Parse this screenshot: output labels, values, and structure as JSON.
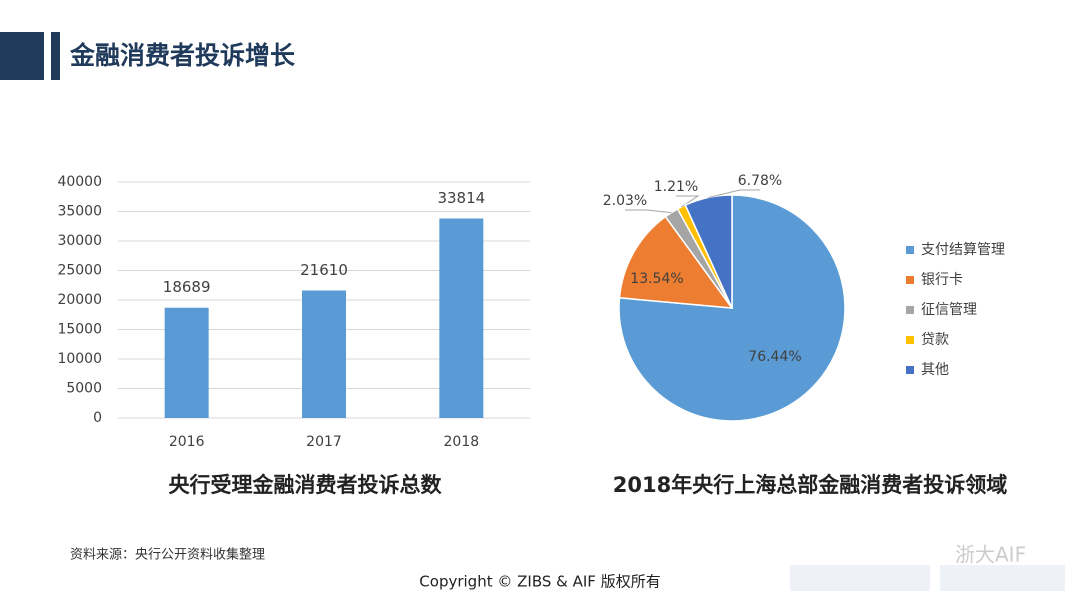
{
  "header": {
    "title": "金融消费者投诉增长"
  },
  "chart_data": [
    {
      "type": "bar",
      "title": "央行受理金融消费者投诉总数",
      "categories": [
        "2016",
        "2017",
        "2018"
      ],
      "values": [
        18689,
        21610,
        33814
      ],
      "color": "#5b9bd5",
      "ylim": [
        0,
        40000
      ],
      "yticks": [
        0,
        5000,
        10000,
        15000,
        20000,
        25000,
        30000,
        35000,
        40000
      ],
      "grid": true
    },
    {
      "type": "pie",
      "title": "2018年央行上海总部金融消费者投诉领域",
      "categories": [
        "支付结算管理",
        "银行卡",
        "征信管理",
        "贷款",
        "其他"
      ],
      "values": [
        76.44,
        13.54,
        2.03,
        1.21,
        6.78
      ],
      "value_labels": [
        "76.44%",
        "13.54%",
        "2.03%",
        "1.21%",
        "6.78%"
      ],
      "colors": [
        "#5b9bd5",
        "#ed7d31",
        "#a5a5a5",
        "#ffc000",
        "#4472c4"
      ],
      "legend": "right"
    }
  ],
  "footer": {
    "source": "资料来源：央行公开资料收集整理",
    "copyright": "Copyright © ZIBS & AIF 版权所有",
    "watermark": "浙大AIF"
  }
}
